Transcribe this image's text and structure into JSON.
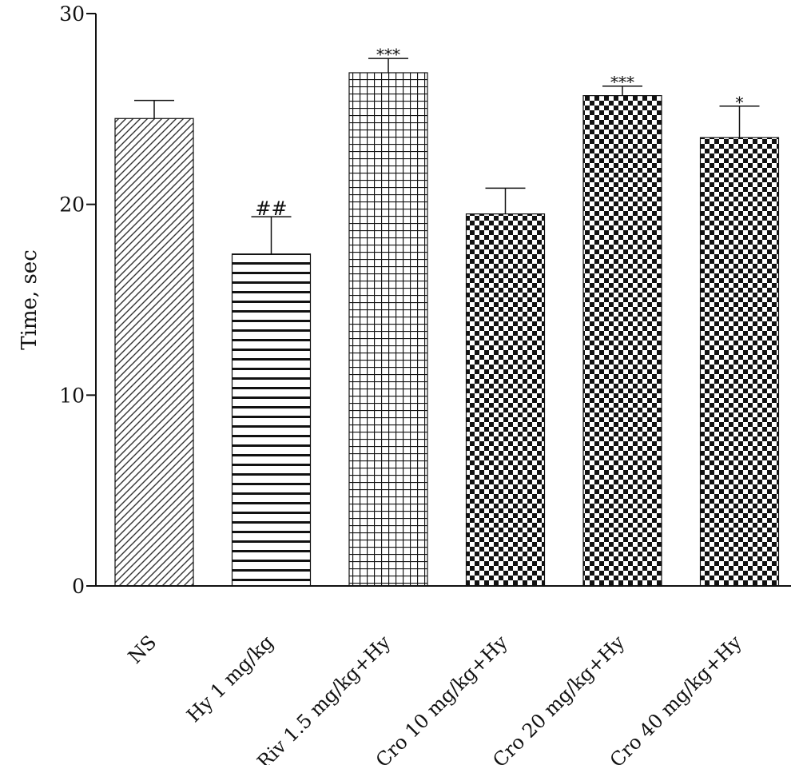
{
  "chart_data": {
    "type": "bar",
    "title": "",
    "xlabel": "",
    "ylabel": "Time, sec",
    "ylim": [
      0,
      30
    ],
    "yticks": [
      "0",
      "10",
      "20",
      "30"
    ],
    "grid": false,
    "legend": "none",
    "categories": [
      "NS",
      "Hy 1 mg/kg",
      "Riv 1.5 mg/kg+Hy",
      "Cro 10 mg/kg+Hy",
      "Cro 20 mg/kg+Hy",
      "Cro 40 mg/kg+Hy"
    ],
    "values": [
      24.5,
      17.4,
      26.9,
      19.5,
      25.7,
      23.5
    ],
    "errors": [
      0.95,
      1.95,
      0.75,
      1.35,
      0.5,
      1.65
    ],
    "annotations": [
      "",
      "##",
      "***",
      "",
      "***",
      "*"
    ],
    "patterns": [
      "diagonal-hatch",
      "horizontal-lines",
      "grid",
      "checker",
      "checker",
      "checker"
    ],
    "colors": {
      "ink": "#111111",
      "background": "#ffffff"
    }
  }
}
